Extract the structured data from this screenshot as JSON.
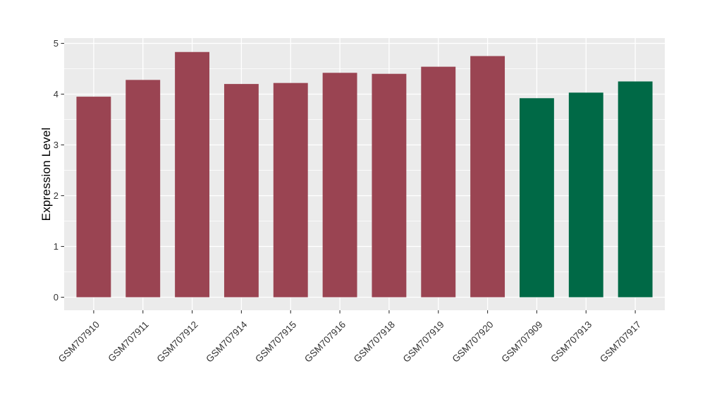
{
  "chart_data": {
    "type": "bar",
    "title": "",
    "xlabel": "",
    "ylabel": "Expression Level",
    "ylim": [
      0,
      5.25
    ],
    "yticks": [
      0,
      1,
      2,
      3,
      4,
      5
    ],
    "yminor": [
      0.5,
      1.5,
      2.5,
      3.5,
      4.5
    ],
    "grid": "white major and minor horizontal lines plus vertical category lines on gray panel",
    "legend_position": "none",
    "categories": [
      "GSM707910",
      "GSM707911",
      "GSM707912",
      "GSM707914",
      "GSM707915",
      "GSM707916",
      "GSM707918",
      "GSM707919",
      "GSM707920",
      "GSM707909",
      "GSM707913",
      "GSM707917"
    ],
    "values": [
      3.95,
      4.28,
      4.83,
      4.2,
      4.22,
      4.42,
      4.4,
      4.54,
      4.75,
      3.92,
      4.03,
      4.25
    ],
    "bar_colors": [
      "#9A4452",
      "#9A4452",
      "#9A4452",
      "#9A4452",
      "#9A4452",
      "#9A4452",
      "#9A4452",
      "#9A4452",
      "#9A4452",
      "#006946",
      "#006946",
      "#006946"
    ],
    "colors": {
      "group_red": "#9A4452",
      "group_green": "#006946",
      "panel_background": "#EBEBEB",
      "gridline": "#FFFFFF",
      "axis_text": "#333333",
      "tick_mark": "#333333",
      "axis_title": "#000000",
      "page_background": "#FFFFFF"
    },
    "bar_width_fraction": 0.7,
    "x_label_angle_deg": 45
  }
}
